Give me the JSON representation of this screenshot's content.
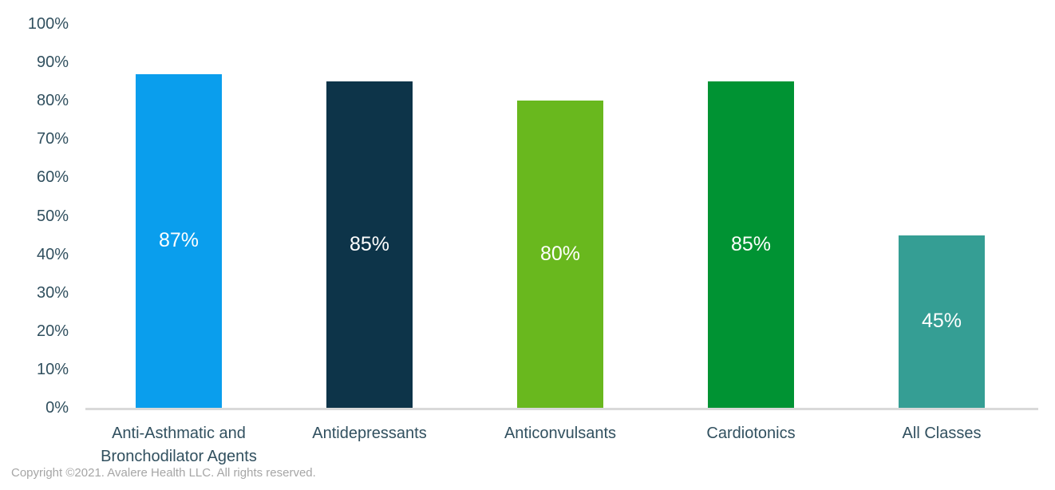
{
  "chart_data": {
    "type": "bar",
    "categories": [
      "Anti-Asthmatic and Bronchodilator Agents",
      "Antidepressants",
      "Anticonvulsants",
      "Cardiotonics",
      "All Classes"
    ],
    "values": [
      87,
      85,
      80,
      85,
      45
    ],
    "value_labels": [
      "87%",
      "85%",
      "80%",
      "85%",
      "45%"
    ],
    "bar_colors": [
      "#0A9EED",
      "#0D3449",
      "#69B81E",
      "#009333",
      "#359E94"
    ],
    "title": "",
    "xlabel": "",
    "ylabel": "",
    "ylim": [
      0,
      100
    ],
    "y_tick_step": 10,
    "y_tick_labels": [
      "100%",
      "90%",
      "80%",
      "70%",
      "60%",
      "50%",
      "40%",
      "30%",
      "20%",
      "10%",
      "0%"
    ],
    "grid": false,
    "legend": false,
    "value_label_position": "center",
    "value_label_color": "#FFFFFF",
    "axis_text_color": "#31505F",
    "axis_line_color": "#D9D9D9"
  },
  "footer": {
    "copyright": "Copyright ©2021. Avalere Health LLC. All rights reserved."
  }
}
